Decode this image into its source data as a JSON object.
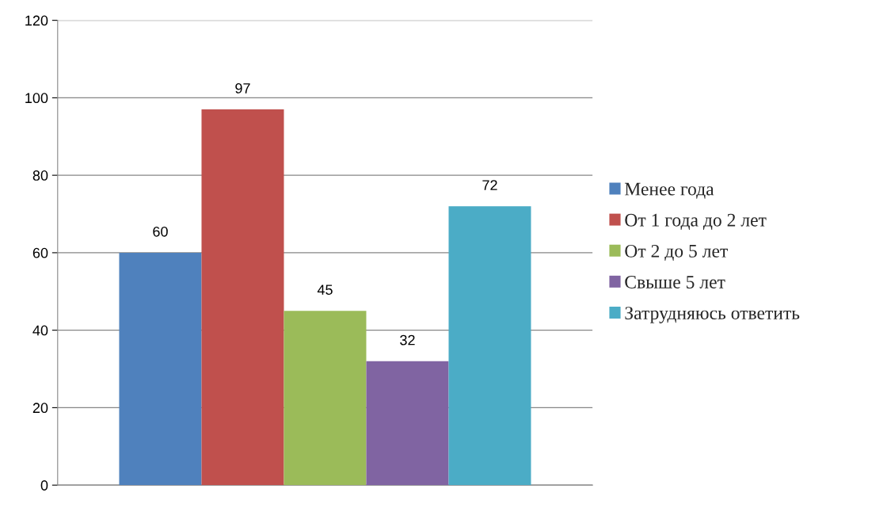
{
  "chart_data": {
    "type": "bar",
    "categories": [
      null
    ],
    "series": [
      {
        "name": "Менее года",
        "color": "#4f81bd",
        "values": [
          60
        ]
      },
      {
        "name": "От 1 года до 2 лет",
        "color": "#c0504d",
        "values": [
          97
        ]
      },
      {
        "name": "От 2 до 5 лет",
        "color": "#9bbb59",
        "values": [
          45
        ]
      },
      {
        "name": "Свыше 5 лет",
        "color": "#8064a2",
        "values": [
          32
        ]
      },
      {
        "name": "Затрудняюсь ответить",
        "color": "#4bacc6",
        "values": [
          72
        ]
      }
    ],
    "ylim": [
      0,
      120
    ],
    "yticks": [
      0,
      20,
      40,
      60,
      80,
      100,
      120
    ],
    "grid": "y",
    "legend": "right",
    "data_labels": true
  }
}
